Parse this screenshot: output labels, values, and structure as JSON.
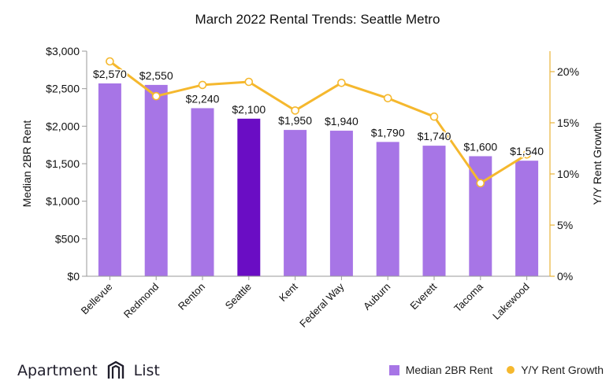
{
  "chart_data": {
    "type": "bar",
    "title": "March 2022 Rental Trends: Seattle Metro",
    "xlabel": "",
    "ylabel": "Median 2BR Rent",
    "y2label": "Y/Y Rent Growth",
    "categories": [
      "Bellevue",
      "Redmond",
      "Renton",
      "Seattle",
      "Kent",
      "Federal Way",
      "Auburn",
      "Everett",
      "Tacoma",
      "Lakewood"
    ],
    "series": [
      {
        "name": "Median 2BR Rent",
        "type": "bar",
        "axis": "left",
        "values": [
          2570,
          2550,
          2240,
          2100,
          1950,
          1940,
          1790,
          1740,
          1600,
          1540
        ],
        "data_labels": [
          "$2,570",
          "$2,550",
          "$2,240",
          "$2,100",
          "$1,950",
          "$1,940",
          "$1,790",
          "$1,740",
          "$1,600",
          "$1,540"
        ],
        "color": "#a775e6",
        "highlight_color": "#6a0dc4",
        "highlight_index": 3
      },
      {
        "name": "Y/Y Rent Growth",
        "type": "line",
        "axis": "right",
        "values": [
          21.0,
          17.6,
          18.7,
          19.0,
          16.2,
          18.9,
          17.4,
          15.6,
          9.1,
          11.9
        ],
        "color": "#f5b82e"
      }
    ],
    "ylim": [
      0,
      3000
    ],
    "y_ticks": [
      "$0",
      "$500",
      "$1,000",
      "$1,500",
      "$2,000",
      "$2,500",
      "$3,000"
    ],
    "y2lim": [
      0,
      22
    ],
    "y2_ticks": [
      "0%",
      "5%",
      "10%",
      "15%",
      "20%"
    ],
    "grid": false,
    "legend_position": "bottom-right"
  },
  "brand": {
    "name_left": "Apartment",
    "name_right": "List"
  },
  "colors": {
    "bar": "#a775e6",
    "bar_highlight": "#6a0dc4",
    "line": "#f5b82e",
    "axis_right": "#e8b43a",
    "axis_left": "#9a9a9a"
  }
}
